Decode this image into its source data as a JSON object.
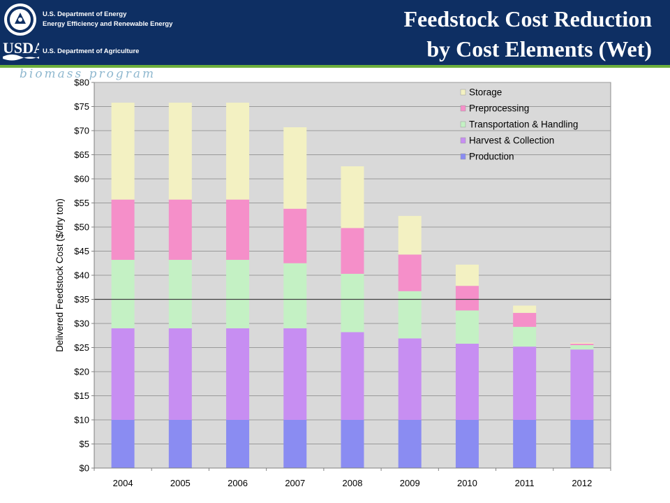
{
  "header": {
    "doe_line1": "U.S. Department of Energy",
    "doe_line2": "Energy Efficiency and Renewable Energy",
    "usda_logo": "USDA",
    "usda_line": "U.S. Department of Agriculture",
    "title_line1": "Feedstock Cost Reduction",
    "title_line2": "by Cost Elements (Wet)",
    "program_tag": "biomass program",
    "colors": {
      "navy": "#0e2f63",
      "green_rule": "#6cae3c"
    },
    "icons": [
      "doe-seal-icon",
      "usda-logo-icon"
    ]
  },
  "chart_data": {
    "type": "bar",
    "stacked": true,
    "categories": [
      "2004",
      "2005",
      "2006",
      "2007",
      "2008",
      "2009",
      "2010",
      "2011",
      "2012"
    ],
    "series": [
      {
        "name": "Production",
        "color": "#8a8cf2",
        "values": [
          10,
          10,
          10,
          10,
          10,
          10,
          10,
          10,
          10
        ]
      },
      {
        "name": "Harvest & Collection",
        "color": "#c78ef2",
        "values": [
          19,
          19,
          19,
          19,
          18.2,
          16.9,
          15.8,
          15.2,
          14.6
        ]
      },
      {
        "name": "Transportation & Handling",
        "color": "#c4f1c4",
        "values": [
          14.2,
          14.2,
          14.2,
          13.5,
          12.1,
          9.8,
          6.9,
          4.1,
          0.9
        ]
      },
      {
        "name": "Preprocessing",
        "color": "#f58fc9",
        "values": [
          12.5,
          12.5,
          12.5,
          11.3,
          9.5,
          7.6,
          5.1,
          2.9,
          0.3
        ]
      },
      {
        "name": "Storage",
        "color": "#f3f1c2",
        "values": [
          20.1,
          20.1,
          20.1,
          16.9,
          12.8,
          8.0,
          4.4,
          1.5,
          0.2
        ]
      }
    ],
    "ylabel": "Delivered Feedstock Cost ($/dry ton)",
    "xlabel": "",
    "ylim": [
      0,
      80
    ],
    "yticks": [
      "$0",
      "$5",
      "$10",
      "$15",
      "$20",
      "$25",
      "$30",
      "$35",
      "$40",
      "$45",
      "$50",
      "$55",
      "$60",
      "$65",
      "$70",
      "$75",
      "$80"
    ],
    "reference_line": 35,
    "grid": true,
    "legend_position": "top-right",
    "legend_order": [
      "Storage",
      "Preprocessing",
      "Transportation & Handling",
      "Harvest & Collection",
      "Production"
    ],
    "plot_bg": "#d9d9d9"
  }
}
